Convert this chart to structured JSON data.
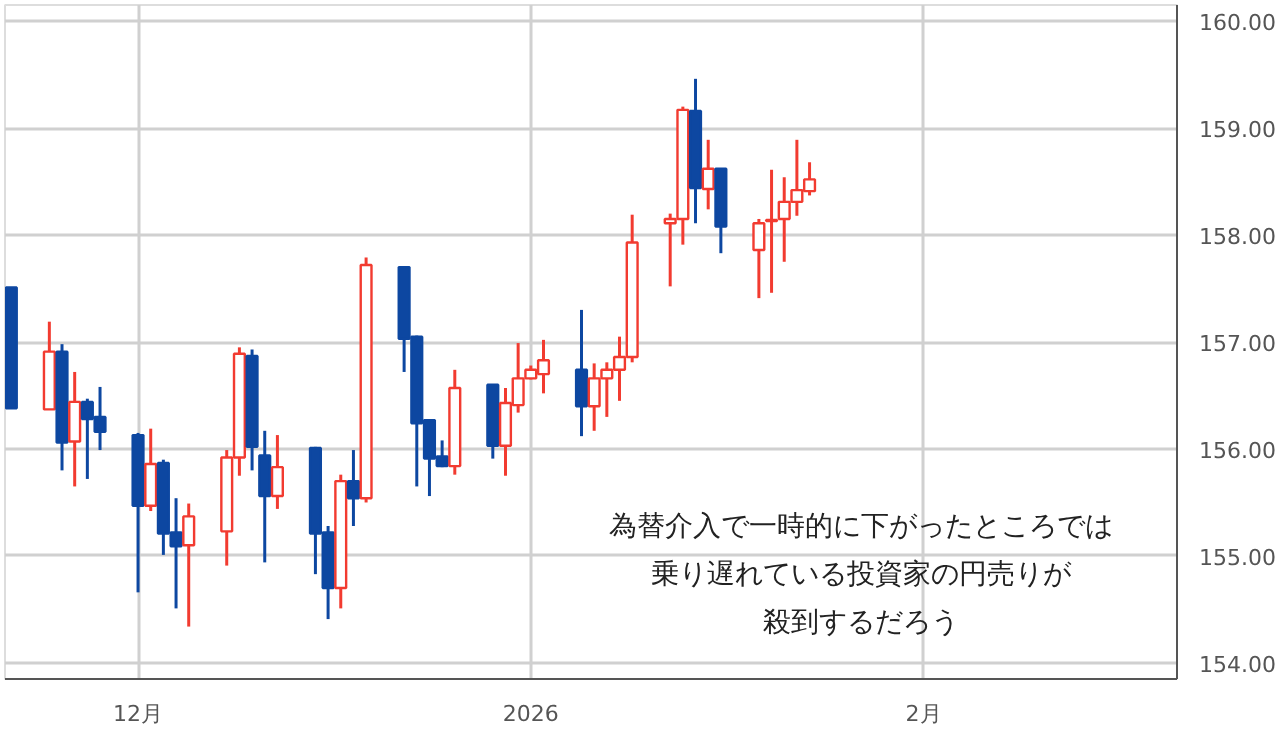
{
  "chart_data": {
    "type": "candlestick",
    "x": [
      "2025-11-21",
      "2025-11-24",
      "2025-11-25",
      "2025-11-26",
      "2025-11-27",
      "2025-11-28",
      "2025-12-01",
      "2025-12-02",
      "2025-12-03",
      "2025-12-04",
      "2025-12-05",
      "2025-12-08",
      "2025-12-09",
      "2025-12-10",
      "2025-12-11",
      "2025-12-12",
      "2025-12-15",
      "2025-12-16",
      "2025-12-17",
      "2025-12-18",
      "2025-12-19",
      "2025-12-22",
      "2025-12-23",
      "2025-12-24",
      "2025-12-25",
      "2025-12-26",
      "2025-12-29",
      "2025-12-30",
      "2025-12-31",
      "2026-01-01",
      "2026-01-02",
      "2026-01-05",
      "2026-01-06",
      "2026-01-07",
      "2026-01-08",
      "2026-01-09",
      "2026-01-12",
      "2026-01-13",
      "2026-01-14",
      "2026-01-15",
      "2026-01-16",
      "2026-01-19",
      "2026-01-20",
      "2026-01-21",
      "2026-01-22",
      "2026-01-23"
    ],
    "ohlc": [
      [
        157.51,
        157.51,
        156.38,
        156.38
      ],
      [
        156.37,
        157.19,
        156.37,
        156.91
      ],
      [
        156.91,
        156.98,
        155.8,
        156.06
      ],
      [
        156.07,
        156.72,
        155.65,
        156.44
      ],
      [
        156.44,
        156.47,
        155.72,
        156.28
      ],
      [
        156.3,
        156.58,
        155.99,
        156.16
      ],
      [
        156.13,
        156.15,
        154.66,
        155.47
      ],
      [
        155.47,
        156.19,
        155.42,
        155.86
      ],
      [
        155.87,
        155.9,
        155.01,
        155.21
      ],
      [
        155.22,
        155.54,
        154.51,
        155.09
      ],
      [
        155.1,
        155.49,
        154.34,
        155.37
      ],
      [
        155.23,
        155.99,
        154.91,
        155.92
      ],
      [
        155.92,
        156.95,
        155.75,
        156.89
      ],
      [
        156.87,
        156.93,
        155.8,
        156.02
      ],
      [
        155.94,
        156.17,
        154.94,
        155.56
      ],
      [
        155.56,
        156.13,
        155.44,
        155.83
      ],
      [
        156.01,
        156.02,
        154.83,
        155.21
      ],
      [
        155.22,
        155.28,
        154.41,
        154.7
      ],
      [
        154.7,
        155.76,
        154.51,
        155.7
      ],
      [
        155.7,
        155.99,
        155.28,
        155.54
      ],
      [
        155.54,
        157.79,
        155.5,
        157.72
      ],
      [
        157.7,
        157.71,
        156.72,
        157.03
      ],
      [
        157.05,
        157.06,
        155.65,
        156.24
      ],
      [
        156.27,
        156.27,
        155.56,
        155.91
      ],
      [
        155.93,
        156.08,
        155.83,
        155.84
      ],
      [
        155.84,
        156.74,
        155.76,
        156.57
      ],
      [
        156.6,
        156.6,
        155.91,
        156.03
      ],
      [
        156.03,
        156.57,
        155.75,
        156.43
      ],
      [
        156.41,
        156.99,
        156.34,
        156.66
      ],
      [
        156.66,
        156.78,
        156.65,
        156.74
      ],
      [
        156.7,
        157.02,
        156.52,
        156.83
      ],
      [
        156.74,
        157.3,
        156.12,
        156.4
      ],
      [
        156.4,
        156.8,
        156.17,
        156.66
      ],
      [
        156.66,
        156.81,
        156.3,
        156.74
      ],
      [
        156.74,
        157.05,
        156.45,
        156.86
      ],
      [
        156.86,
        158.19,
        156.81,
        157.93
      ],
      [
        158.11,
        158.2,
        157.52,
        158.15
      ],
      [
        158.15,
        159.2,
        157.91,
        159.17
      ],
      [
        159.16,
        159.46,
        158.11,
        158.44
      ],
      [
        158.43,
        158.89,
        158.24,
        158.62
      ],
      [
        158.62,
        158.62,
        157.83,
        158.08
      ],
      [
        157.86,
        158.15,
        157.41,
        158.11
      ],
      [
        158.13,
        158.61,
        157.46,
        158.14
      ],
      [
        158.15,
        158.54,
        157.75,
        158.31
      ],
      [
        158.31,
        158.89,
        158.18,
        158.42
      ],
      [
        158.41,
        158.68,
        158.37,
        158.52
      ]
    ],
    "colors": [
      "#0d47a1",
      "#f23b30",
      "#0d47a1",
      "#f23b30",
      "#0d47a1",
      "#0d47a1",
      "#0d47a1",
      "#f23b30",
      "#0d47a1",
      "#0d47a1",
      "#f23b30",
      "#f23b30",
      "#f23b30",
      "#0d47a1",
      "#0d47a1",
      "#f23b30",
      "#0d47a1",
      "#0d47a1",
      "#f23b30",
      "#0d47a1",
      "#f23b30",
      "#0d47a1",
      "#0d47a1",
      "#0d47a1",
      "#0d47a1",
      "#f23b30",
      "#0d47a1",
      "#f23b30",
      "#f23b30",
      "#f23b30",
      "#f23b30",
      "#0d47a1",
      "#f23b30",
      "#f23b30",
      "#f23b30",
      "#f23b30",
      "#f23b30",
      "#f23b30",
      "#0d47a1",
      "#f23b30",
      "#0d47a1",
      "#f23b30",
      "#f23b30",
      "#f23b30",
      "#f23b30",
      "#f23b30"
    ],
    "xlim": [
      "2025-11-20T12:00",
      "2026-02-21"
    ],
    "xticks": [
      {
        "value": "2025-12-01",
        "label": "12月"
      },
      {
        "value": "2026-01-01",
        "label": "2026"
      },
      {
        "value": "2026-02-01",
        "label": "2月"
      }
    ],
    "ylim": [
      153.85,
      160.15
    ],
    "yticks": [
      {
        "value": 154,
        "label": "154.00"
      },
      {
        "value": 155,
        "label": "155.00"
      },
      {
        "value": 156,
        "label": "156.00"
      },
      {
        "value": 157,
        "label": "157.00"
      },
      {
        "value": 158,
        "label": "158.00"
      },
      {
        "value": 159,
        "label": "159.00"
      },
      {
        "value": 160,
        "label": "160.00"
      }
    ],
    "grid": true,
    "annotations": [
      "為替介入で一時的に下がったところでは",
      "乗り遅れている投資家の円売りが",
      "殺到するだろう"
    ]
  }
}
